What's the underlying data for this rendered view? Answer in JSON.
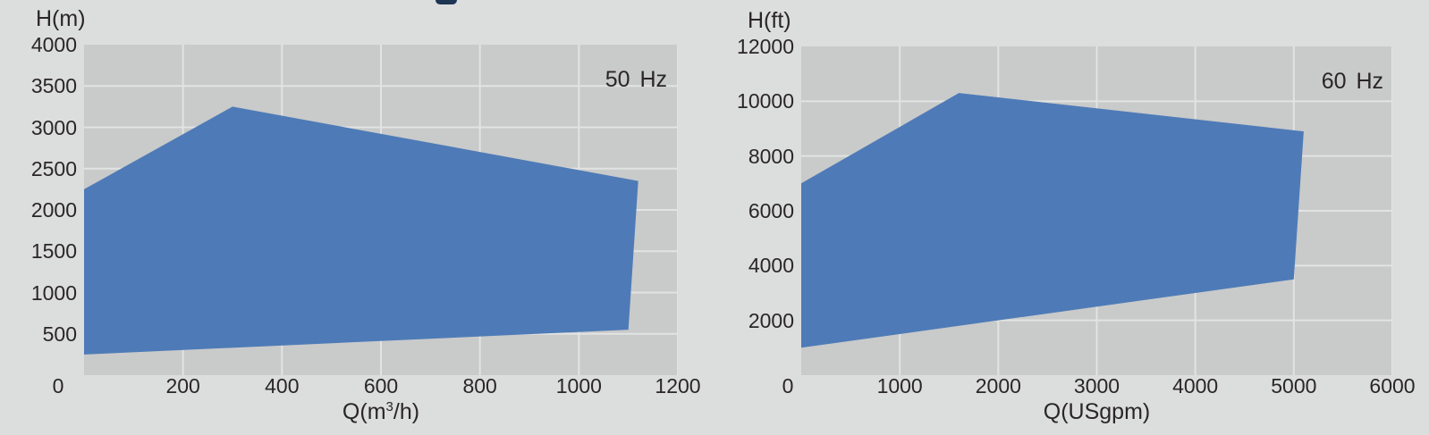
{
  "page": {
    "background_color": "#dcdddd",
    "cropped_heading_fragment_color": "#1d3553"
  },
  "chart_data": [
    {
      "type": "area",
      "description": "Pump performance envelope, metric units",
      "frequency_label": "50 Hz",
      "y_axis_label": "H(m)",
      "x_axis_label": "Q(m³/h)",
      "x_axis_label_parts": {
        "prefix": "Q(m",
        "sup": "3",
        "suffix": "/h)"
      },
      "xlim": [
        0,
        1200
      ],
      "ylim": [
        0,
        4000
      ],
      "x_ticks": [
        0,
        200,
        400,
        600,
        800,
        1000,
        1200
      ],
      "y_ticks": [
        500,
        1000,
        1500,
        2000,
        2500,
        3000,
        3500,
        4000
      ],
      "grid": true,
      "legend": "none",
      "envelope_points_q_h": [
        [
          0,
          2250
        ],
        [
          300,
          3250
        ],
        [
          1120,
          2350
        ],
        [
          1100,
          550
        ],
        [
          0,
          250
        ]
      ],
      "fill_color": "#4e7bb7",
      "plot_background_color": "#c9caca",
      "gridline_color": "#e2e3e3"
    },
    {
      "type": "area",
      "description": "Pump performance envelope, US units",
      "frequency_label": "60 Hz",
      "y_axis_label": "H(ft)",
      "x_axis_label": "Q(USgpm)",
      "x_axis_label_parts": {
        "prefix": "Q(USgpm)",
        "sup": "",
        "suffix": ""
      },
      "xlim": [
        0,
        6000
      ],
      "ylim": [
        0,
        12000
      ],
      "x_ticks": [
        0,
        1000,
        2000,
        3000,
        4000,
        5000,
        6000
      ],
      "y_ticks": [
        2000,
        4000,
        6000,
        8000,
        10000,
        12000
      ],
      "grid": true,
      "legend": "none",
      "envelope_points_q_h": [
        [
          0,
          7000
        ],
        [
          1600,
          10300
        ],
        [
          5100,
          8900
        ],
        [
          5000,
          3500
        ],
        [
          0,
          1000
        ]
      ],
      "fill_color": "#4e7bb7",
      "plot_background_color": "#c9caca",
      "gridline_color": "#e2e3e3"
    }
  ]
}
